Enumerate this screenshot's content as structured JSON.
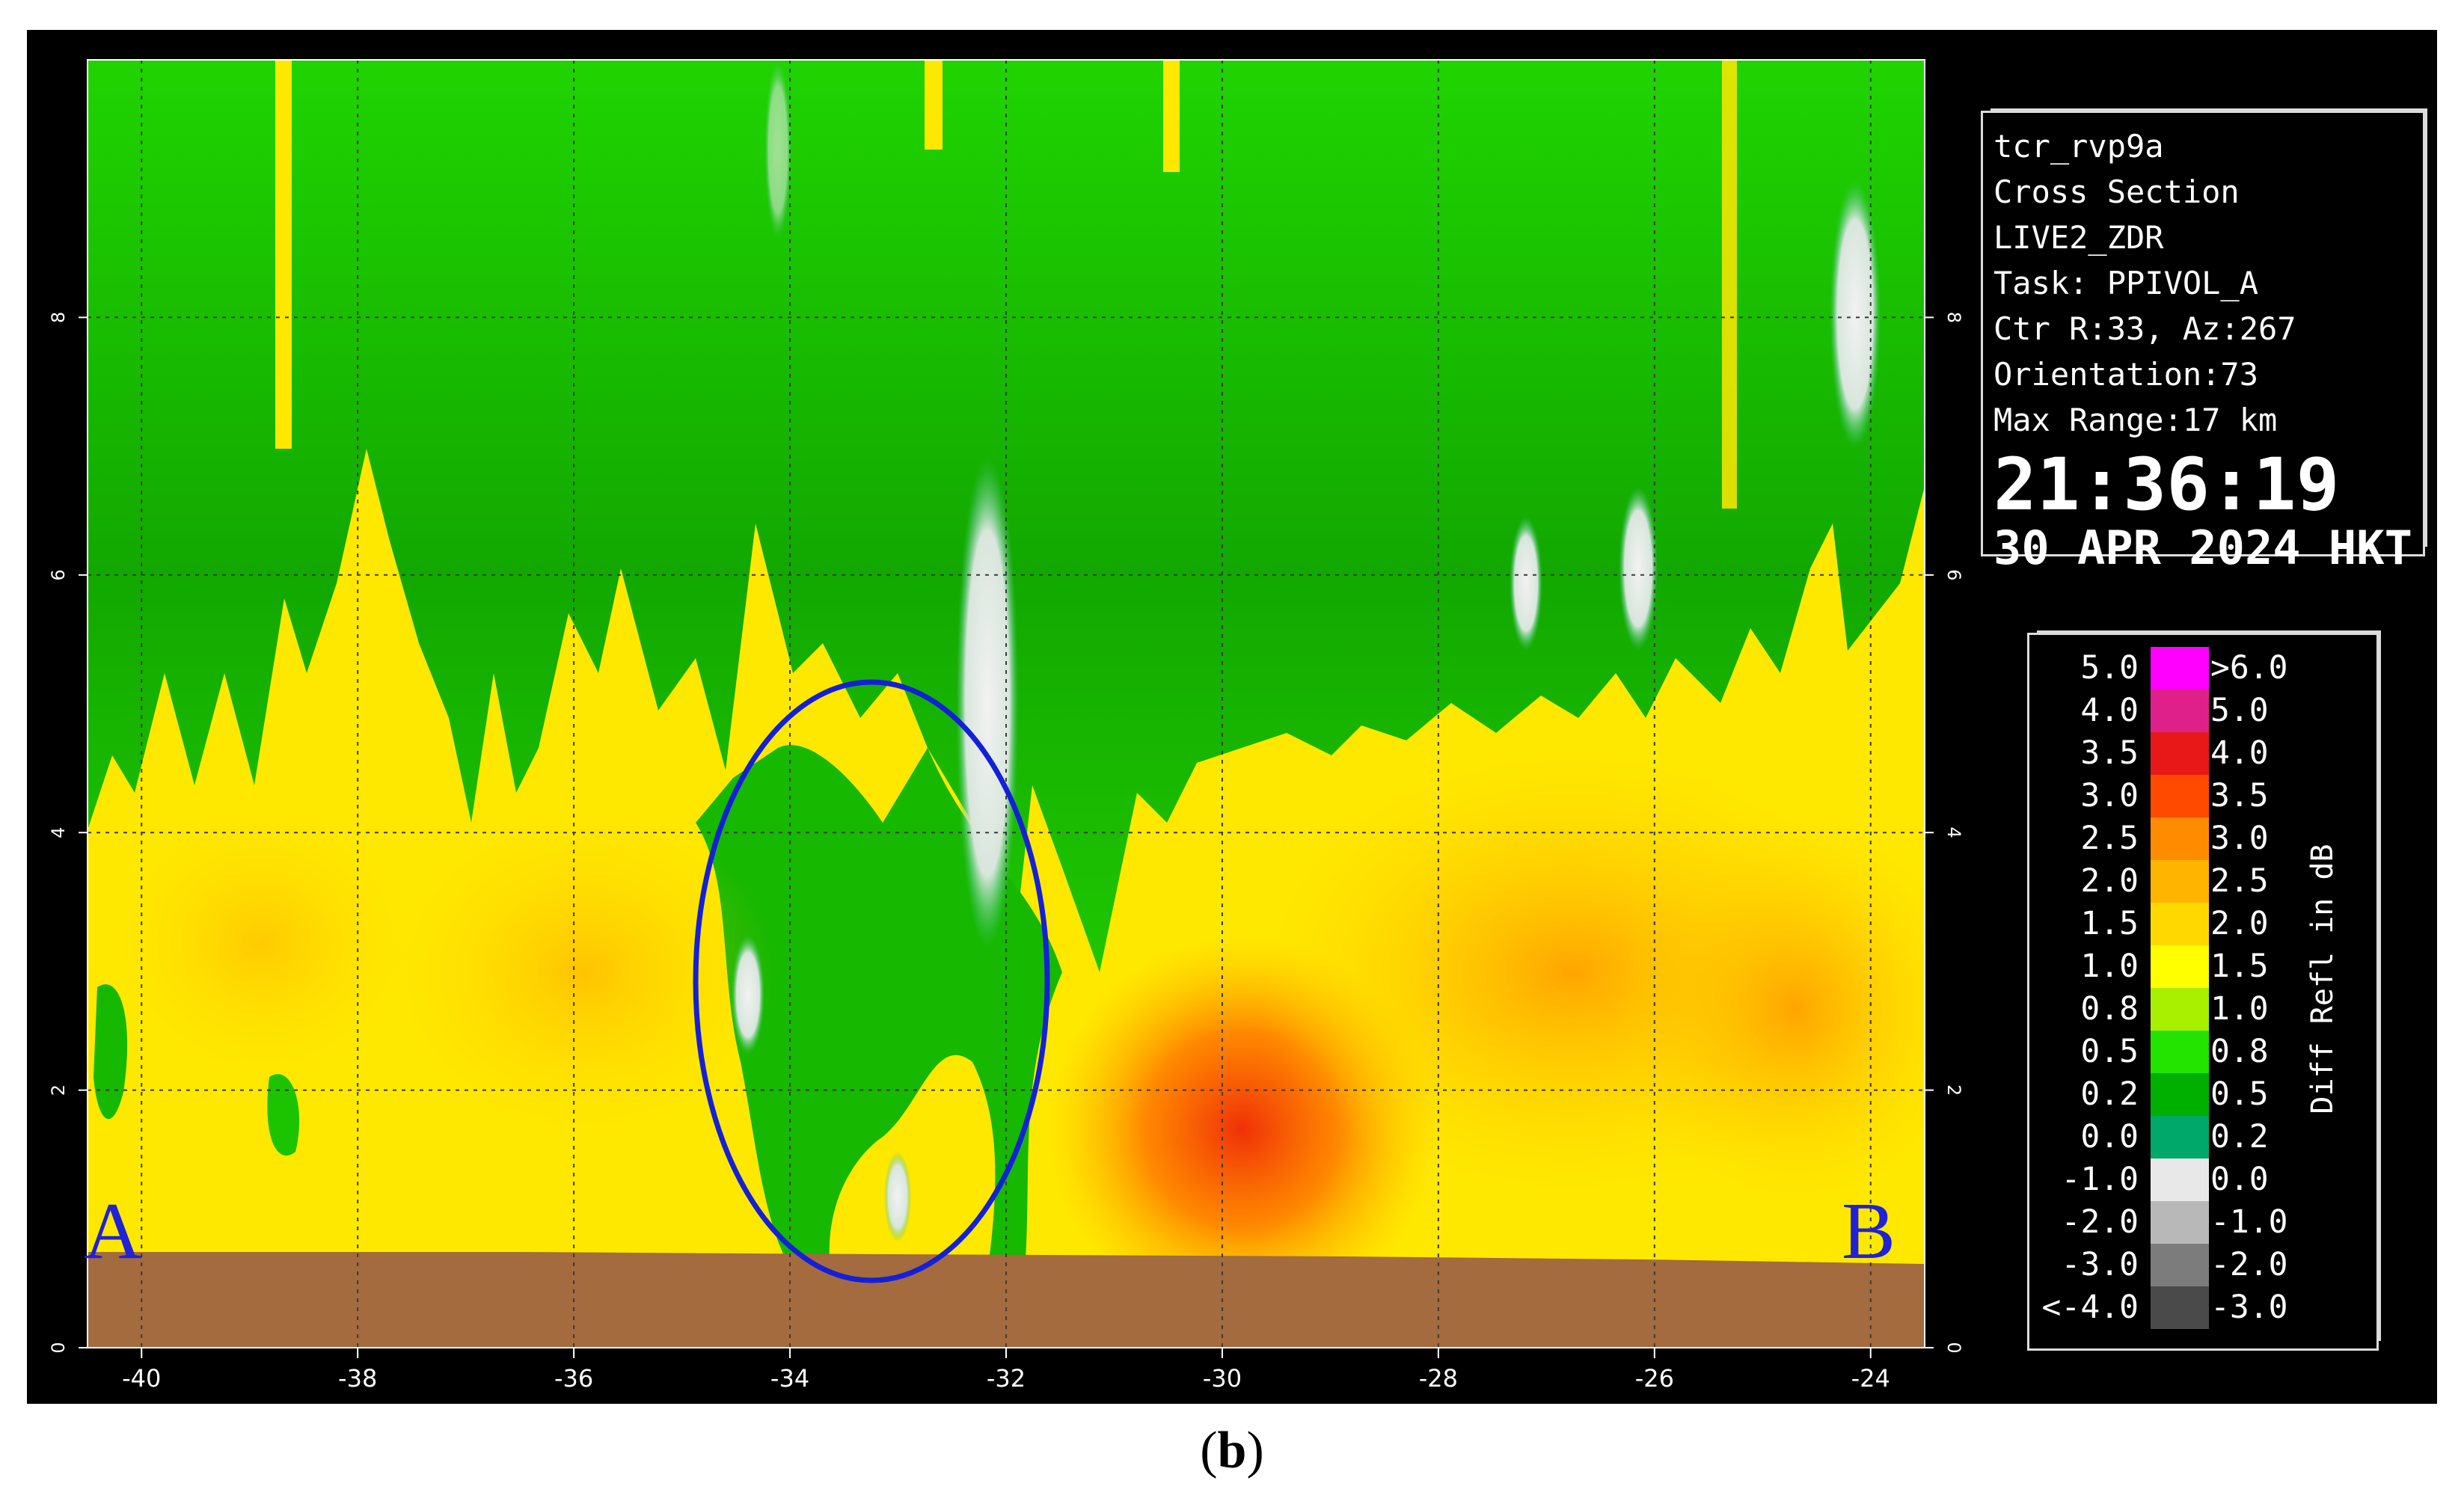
{
  "info": {
    "site": "tcr_rvp9a",
    "product": "Cross Section",
    "field": "LIVE2_ZDR",
    "task": "Task: PPIVOL_A",
    "center": "Ctr R:33, Az:267",
    "orientation": "Orientation:73",
    "max_range": "Max Range:17 km",
    "time": "21:36:19",
    "date": "30 APR 2024 HKT"
  },
  "axes": {
    "x_ticks": [
      "-40",
      "-38",
      "-36",
      "-34",
      "-32",
      "-30",
      "-28",
      "-26",
      "-24"
    ],
    "y_ticks": [
      "0",
      "2",
      "4",
      "6",
      "8"
    ]
  },
  "markers": {
    "start": "A",
    "end": "B"
  },
  "legend": {
    "title": "Diff Refl in dB",
    "rows": [
      {
        "left": "5.0",
        "right": ">6.0",
        "color": "#ff00ff"
      },
      {
        "left": "4.0",
        "right": "5.0",
        "color": "#e0208a"
      },
      {
        "left": "3.5",
        "right": "4.0",
        "color": "#e81818"
      },
      {
        "left": "3.0",
        "right": "3.5",
        "color": "#ff4a00"
      },
      {
        "left": "2.5",
        "right": "3.0",
        "color": "#ff8c00"
      },
      {
        "left": "2.0",
        "right": "2.5",
        "color": "#ffb400"
      },
      {
        "left": "1.5",
        "right": "2.0",
        "color": "#ffd800"
      },
      {
        "left": "1.0",
        "right": "1.5",
        "color": "#ffff00"
      },
      {
        "left": "0.8",
        "right": "1.0",
        "color": "#a8f000"
      },
      {
        "left": "0.5",
        "right": "0.8",
        "color": "#22e400"
      },
      {
        "left": "0.2",
        "right": "0.5",
        "color": "#00b000"
      },
      {
        "left": "0.0",
        "right": "0.2",
        "color": "#00a86a"
      },
      {
        "left": "-1.0",
        "right": "0.0",
        "color": "#e8e8e8"
      },
      {
        "left": "-2.0",
        "right": "-1.0",
        "color": "#b8b8b8"
      },
      {
        "left": "-3.0",
        "right": "-2.0",
        "color": "#7c7c7c"
      },
      {
        "left": "<-4.0",
        "right": "-3.0",
        "color": "#4a4a4a"
      }
    ]
  },
  "caption": {
    "open": "(",
    "letter": "b",
    "close": ")"
  }
}
